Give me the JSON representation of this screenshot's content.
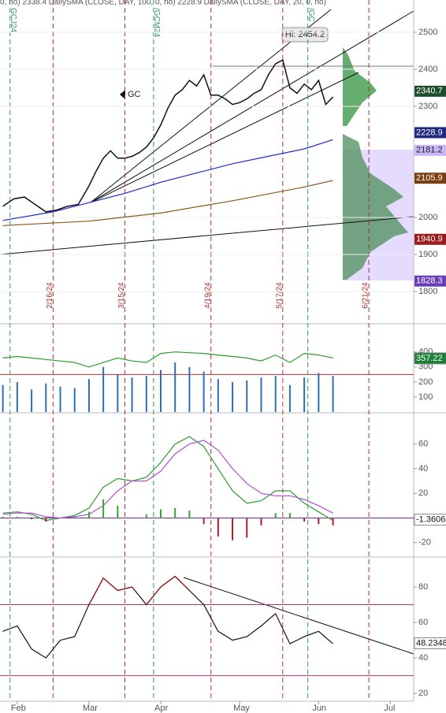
{
  "chart_data": [
    {
      "type": "line",
      "header": "0, no) 2338.4   DailySMA (CLOSE, DAY, 100, 0, no) 2228.9   DailySMA (CLOSE, DAY, 20, 0, no)",
      "annotation": "Hi: 2454.2",
      "xlim": [
        -4.8,
        110.5
      ],
      "ylim": [
        1715,
        2587
      ],
      "yticks": [
        1800,
        1900,
        2000,
        2300,
        2400,
        2500
      ],
      "grid": true,
      "series": [
        {
          "name": "GC",
          "color": "#111111",
          "x": [
            -4,
            -1,
            2,
            5,
            8,
            11,
            14,
            17,
            20,
            22,
            24,
            26,
            28,
            30,
            32,
            34,
            36,
            38,
            40,
            42,
            44,
            46,
            48,
            50,
            52,
            54,
            56,
            58,
            60,
            62,
            64,
            66,
            68,
            70,
            72,
            74,
            76,
            78,
            80,
            82,
            84,
            86,
            88
          ],
          "values": [
            2030,
            2050,
            2055,
            2035,
            2015,
            2020,
            2030,
            2035,
            2085,
            2125,
            2160,
            2180,
            2160,
            2160,
            2165,
            2175,
            2190,
            2215,
            2250,
            2295,
            2330,
            2345,
            2370,
            2355,
            2385,
            2330,
            2330,
            2320,
            2305,
            2310,
            2320,
            2335,
            2345,
            2385,
            2415,
            2425,
            2350,
            2335,
            2360,
            2345,
            2370,
            2305,
            2325
          ]
        },
        {
          "color": "#1f2ad0",
          "x": [
            -4,
            10,
            20,
            30,
            40,
            50,
            60,
            70,
            80,
            88
          ],
          "values": [
            1992,
            2015,
            2040,
            2065,
            2095,
            2120,
            2145,
            2165,
            2185,
            2210
          ]
        },
        {
          "color": "#8a5a1c",
          "x": [
            -4,
            20,
            40,
            60,
            80,
            88
          ],
          "values": [
            1978,
            1990,
            2012,
            2045,
            2082,
            2100
          ]
        }
      ],
      "price_labels": [
        {
          "value": 2340.7,
          "color": "#1e4d2b",
          "text_color": "#ffffff"
        },
        {
          "value": 2228.9,
          "color": "#1f2a80",
          "text_color": "#ffffff"
        },
        {
          "value": 2181.2,
          "color": "#c9b8f5",
          "text_color": "#222222"
        },
        {
          "value": 2105.9,
          "color": "#7a3e12",
          "text_color": "#ffffff"
        },
        {
          "value": 1940.9,
          "color": "#9b1c1c",
          "text_color": "#ffffff"
        },
        {
          "value": 1828.3,
          "color": "#6a3fb5",
          "text_color": "#ffffff"
        }
      ],
      "date_lines": [
        {
          "x": 10,
          "label": "2/16/24"
        },
        {
          "x": 30,
          "label": "3/15/24"
        },
        {
          "x": 54,
          "label": "4/19/24"
        },
        {
          "x": 74,
          "label": "5/17/24"
        },
        {
          "x": 98,
          "label": "6/21/24"
        }
      ],
      "contract_lines": [
        {
          "x": -2,
          "label": "GCJ24"
        },
        {
          "x": 38,
          "label": "/GCM24"
        },
        {
          "x": 81,
          "label": "/GC"
        }
      ]
    },
    {
      "type": "bar",
      "ylim": [
        0,
        577
      ],
      "yticks": [
        100,
        200,
        300,
        400
      ],
      "x": [
        -4,
        0,
        4,
        8,
        12,
        16,
        20,
        24,
        28,
        32,
        36,
        40,
        44,
        48,
        52,
        56,
        60,
        64,
        68,
        72,
        76,
        80,
        84,
        88
      ],
      "series": [
        {
          "kind": "bar",
          "color": "#2d6fb7",
          "values": [
            180,
            200,
            150,
            190,
            170,
            160,
            220,
            300,
            250,
            230,
            240,
            280,
            330,
            300,
            270,
            220,
            200,
            210,
            230,
            240,
            180,
            230,
            260,
            240
          ]
        },
        {
          "kind": "line",
          "color": "#2e9b2e",
          "values": [
            360,
            370,
            360,
            350,
            340,
            330,
            300,
            330,
            360,
            340,
            330,
            390,
            400,
            395,
            390,
            380,
            370,
            360,
            340,
            380,
            330,
            390,
            380,
            360
          ]
        }
      ],
      "hlines": [
        {
          "value": 250,
          "color": "#a33"
        }
      ],
      "last_label": {
        "value": 357.22,
        "color": "#1a7f37",
        "text_color": "#ffffff"
      }
    },
    {
      "type": "line",
      "ylim": [
        -31,
        84
      ],
      "yticks": [
        -20,
        20,
        40,
        60
      ],
      "x": [
        -4,
        0,
        4,
        8,
        12,
        16,
        20,
        24,
        28,
        32,
        36,
        40,
        44,
        48,
        52,
        56,
        60,
        64,
        68,
        72,
        76,
        80,
        84,
        88
      ],
      "series": [
        {
          "kind": "line",
          "color": "#2e9b2e",
          "values": [
            4,
            5,
            3,
            -2,
            0,
            2,
            8,
            25,
            32,
            30,
            33,
            45,
            60,
            66,
            58,
            40,
            22,
            12,
            14,
            22,
            22,
            12,
            5,
            -2
          ]
        },
        {
          "kind": "line",
          "color": "#b04fd6",
          "values": [
            3,
            4,
            4,
            1,
            0,
            1,
            3,
            10,
            22,
            30,
            30,
            38,
            52,
            60,
            63,
            55,
            40,
            28,
            20,
            18,
            18,
            15,
            10,
            4
          ]
        },
        {
          "kind": "hist",
          "up_color": "#2ea82e",
          "down_color": "#b01c2e",
          "values": [
            1,
            1,
            -1,
            -3,
            0,
            1,
            5,
            15,
            10,
            0,
            3,
            7,
            8,
            6,
            -5,
            -15,
            -18,
            -16,
            -6,
            4,
            4,
            -3,
            -5,
            -6
          ]
        }
      ],
      "hlines": [
        {
          "value": 0,
          "color": "#6a2c91"
        }
      ],
      "last_label": {
        "value": -1.3606,
        "color": "#ffffff",
        "text_color": "#111111"
      }
    },
    {
      "type": "line",
      "ylim": [
        15.6,
        96
      ],
      "yticks": [
        20,
        40,
        60,
        80
      ],
      "x": [
        -4,
        0,
        4,
        8,
        12,
        16,
        20,
        24,
        28,
        32,
        36,
        40,
        44,
        48,
        52,
        56,
        60,
        64,
        68,
        72,
        76,
        80,
        84,
        88
      ],
      "series": [
        {
          "kind": "rsi",
          "color": "#111111",
          "up_color": "#a11d1d",
          "values": [
            55,
            58,
            45,
            40,
            50,
            52,
            70,
            85,
            78,
            80,
            70,
            80,
            86,
            78,
            70,
            55,
            50,
            52,
            58,
            65,
            48,
            52,
            55,
            48
          ]
        }
      ],
      "hlines": [
        {
          "value": 70,
          "color": "#b0307a"
        },
        {
          "value": 30,
          "color": "#b0307a"
        }
      ],
      "last_label": {
        "value": 48.2348,
        "color": "#ffffff",
        "text_color": "#111111"
      },
      "xticks": [
        {
          "value": 0,
          "label": "Feb"
        },
        {
          "value": 20,
          "label": "Mar"
        },
        {
          "value": 40,
          "label": "Apr"
        },
        {
          "value": 62,
          "label": "May"
        },
        {
          "value": 84,
          "label": "Jun"
        },
        {
          "value": 104,
          "label": "Jul"
        }
      ]
    }
  ]
}
